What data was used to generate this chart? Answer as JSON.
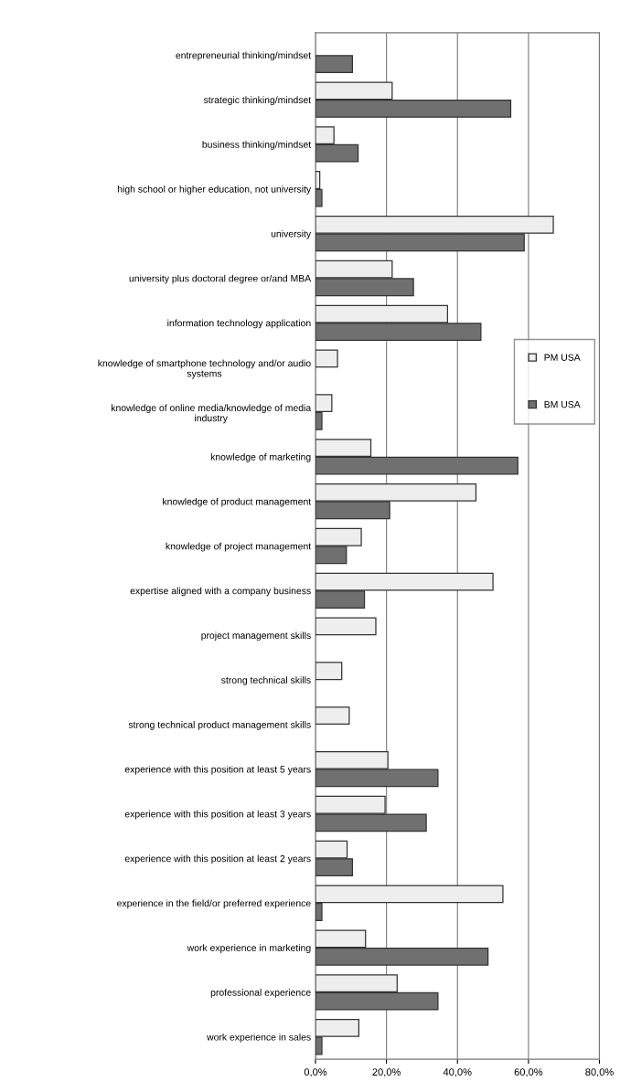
{
  "chart_data": {
    "type": "bar",
    "orientation": "horizontal",
    "categories": [
      "entrepreneurial thinking/mindset",
      "strategic thinking/mindset",
      "business thinking/mindset",
      "high school or higher education, not university",
      "university",
      "university plus doctoral degree or/and MBA",
      "information technology application",
      "knowledge of smartphone technology and/or audio\nsystems",
      "knowledge of online media/knowledge of media\nindustry",
      "knowledge of marketing",
      "knowledge of product management",
      "knowledge of project management",
      "expertise aligned with a company business",
      "project management skills",
      "strong technical skills",
      "strong technical product management skills",
      "experience with this position at least 5 years",
      "experience with this position at least 3 years",
      "experience with this position at least 2 years",
      "experience in the field/or preferred experience",
      "work experience in marketing",
      "professional experience",
      "work experience in sales"
    ],
    "series": [
      {
        "name": "PM USA",
        "color": "#eeeeee",
        "values": [
          null,
          21.6,
          5.2,
          1.2,
          67.0,
          21.6,
          37.2,
          6.2,
          4.6,
          15.6,
          45.2,
          12.9,
          50.0,
          17.0,
          7.4,
          9.5,
          20.4,
          19.6,
          8.9,
          52.8,
          14.1,
          23.0,
          12.2
        ]
      },
      {
        "name": "BM USA",
        "color": "#707070",
        "values": [
          10.4,
          55.0,
          12.0,
          1.8,
          58.8,
          27.6,
          46.6,
          null,
          1.8,
          57.0,
          20.9,
          8.7,
          13.8,
          null,
          null,
          null,
          34.5,
          31.2,
          10.4,
          1.8,
          48.6,
          34.5,
          1.8
        ]
      }
    ],
    "xlim": [
      0,
      80
    ],
    "xticks": [
      {
        "value": 0,
        "label": "0,0%"
      },
      {
        "value": 20,
        "label": "20,0%"
      },
      {
        "value": 40,
        "label": "40,0%"
      },
      {
        "value": 60,
        "label": "60,0%"
      },
      {
        "value": 80,
        "label": "80,0%"
      }
    ],
    "grid": "x",
    "legend": "right"
  }
}
